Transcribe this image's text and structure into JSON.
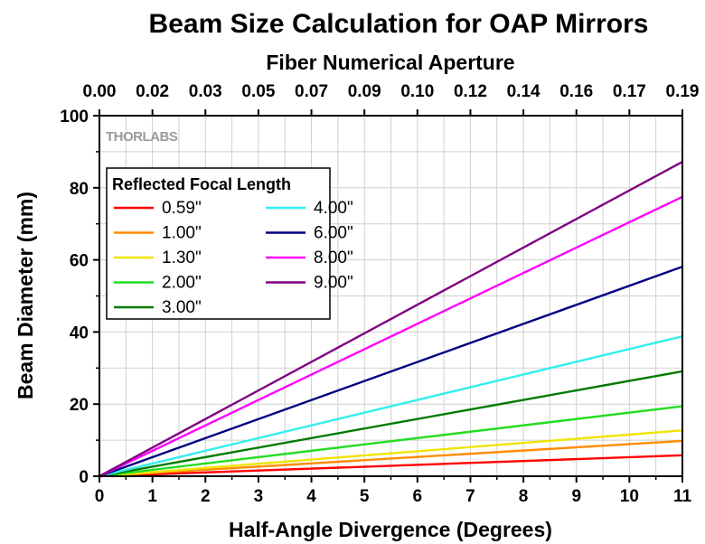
{
  "chart_data": {
    "type": "line",
    "title": "Beam Size Calculation for OAP Mirrors",
    "top_axis_label": "Fiber Numerical Aperture",
    "top_ticks": [
      "0.00",
      "0.02",
      "0.03",
      "0.05",
      "0.07",
      "0.09",
      "0.10",
      "0.12",
      "0.14",
      "0.16",
      "0.17",
      "0.19"
    ],
    "xlabel": "Half-Angle Divergence (Degrees)",
    "ylabel": "Beam Diameter (mm)",
    "xlim": [
      0,
      11
    ],
    "ylim": [
      0,
      100
    ],
    "x_ticks": [
      "0",
      "1",
      "2",
      "3",
      "4",
      "5",
      "6",
      "7",
      "8",
      "9",
      "10",
      "11"
    ],
    "y_ticks": [
      "0",
      "20",
      "40",
      "60",
      "80",
      "100"
    ],
    "grid": true,
    "watermark": "THORLABS",
    "legend_title": "Reflected Focal Length",
    "legend_position": "top-left",
    "x": [
      0,
      11
    ],
    "series": [
      {
        "name": "0.59\"",
        "color": "#ff0000",
        "values": [
          0,
          5.8
        ]
      },
      {
        "name": "1.00\"",
        "color": "#ff8c00",
        "values": [
          0,
          9.8
        ]
      },
      {
        "name": "1.30\"",
        "color": "#f0e400",
        "values": [
          0,
          12.7
        ]
      },
      {
        "name": "2.00\"",
        "color": "#22dd22",
        "values": [
          0,
          19.4
        ]
      },
      {
        "name": "3.00\"",
        "color": "#007a00",
        "values": [
          0,
          29.1
        ]
      },
      {
        "name": "4.00\"",
        "color": "#33eeee",
        "values": [
          0,
          38.8
        ]
      },
      {
        "name": "6.00\"",
        "color": "#000080",
        "values": [
          0,
          58.1
        ]
      },
      {
        "name": "8.00\"",
        "color": "#ff00ff",
        "values": [
          0,
          77.5
        ]
      },
      {
        "name": "9.00\"",
        "color": "#800080",
        "values": [
          0,
          87.2
        ]
      }
    ]
  }
}
